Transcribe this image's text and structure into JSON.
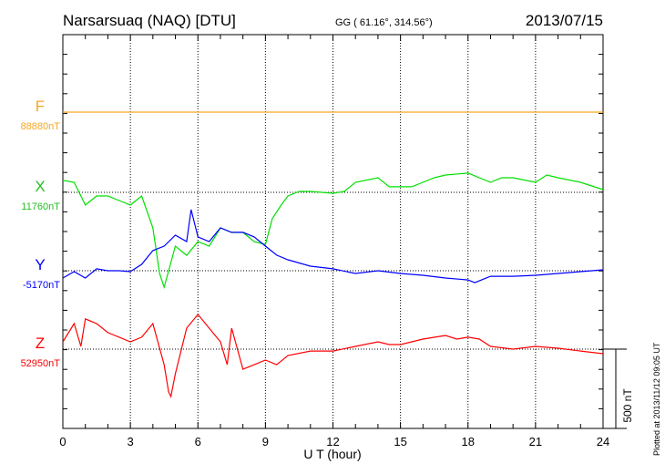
{
  "header": {
    "station": "Narsarsuaq (NAQ)  [DTU]",
    "coords": "GG ( 61.16°, 314.56°)",
    "date": "2013/07/15"
  },
  "footer_note": "Plotted at 2013/11/12 09:05 UT",
  "chart_data": {
    "type": "line",
    "xlabel": "U T (hour)",
    "xlim": [
      0,
      24
    ],
    "xticks": [
      "0",
      "3",
      "6",
      "9",
      "12",
      "15",
      "18",
      "21",
      "24"
    ],
    "scale_bar": "500 nT",
    "scale_bar_nT": 500,
    "grid": "dotted at 3-hour intervals and at each component baseline",
    "series": [
      {
        "name": "F",
        "baseline_label": "88880nT",
        "color": "#f5a623",
        "x": [
          0,
          24
        ],
        "values": [
          0,
          0
        ]
      },
      {
        "name": "X",
        "baseline_label": "11760nT",
        "color": "#00e000",
        "x": [
          0,
          0.5,
          1,
          1.5,
          2,
          2.5,
          3,
          3.5,
          4,
          4.3,
          4.5,
          5,
          5.5,
          6,
          6.5,
          7,
          7.5,
          8,
          8.5,
          9,
          9.3,
          9.7,
          10,
          10.5,
          11,
          12,
          12.5,
          13,
          14,
          14.5,
          15,
          15.5,
          16,
          16.5,
          17,
          18,
          18.5,
          19,
          19.5,
          20,
          21,
          21.5,
          22,
          23,
          24
        ],
        "values": [
          75,
          63,
          -80,
          -23,
          -23,
          -52,
          -80,
          -23,
          -224,
          -512,
          -598,
          -339,
          -397,
          -311,
          -339,
          -224,
          -253,
          -253,
          -311,
          -328,
          -167,
          -80,
          -23,
          6,
          6,
          -6,
          6,
          63,
          92,
          35,
          35,
          35,
          63,
          92,
          109,
          121,
          92,
          63,
          92,
          92,
          63,
          109,
          92,
          63,
          17
        ]
      },
      {
        "name": "Y",
        "baseline_label": "-5170nT",
        "color": "#0000ff",
        "x": [
          0,
          0.5,
          1,
          1.5,
          2,
          2.5,
          3,
          3.5,
          4,
          4.5,
          5,
          5.5,
          5.7,
          6,
          6.5,
          7,
          7.5,
          8,
          8.5,
          9,
          9.5,
          10,
          11,
          12,
          13,
          14,
          15,
          16,
          17,
          18,
          18.3,
          19,
          20,
          21,
          22,
          23,
          24
        ],
        "values": [
          -46,
          -6,
          -46,
          12,
          0,
          0,
          -6,
          40,
          127,
          155,
          224,
          184,
          385,
          213,
          184,
          270,
          242,
          242,
          213,
          155,
          98,
          69,
          29,
          12,
          -17,
          0,
          -17,
          -29,
          -46,
          -58,
          -75,
          -35,
          -35,
          -29,
          -17,
          -6,
          6
        ]
      },
      {
        "name": "Z",
        "baseline_label": "52950nT",
        "color": "#ff0000",
        "x": [
          0,
          0.5,
          0.8,
          1,
          1.5,
          2,
          2.5,
          3,
          3.5,
          4,
          4.5,
          4.7,
          4.8,
          5,
          5.5,
          6,
          6.5,
          7,
          7.3,
          7.5,
          8,
          8.5,
          9,
          9.5,
          10,
          11,
          12,
          13,
          14,
          14.5,
          15,
          16,
          17,
          17.5,
          18,
          18.5,
          19,
          20,
          21,
          22,
          23,
          24
        ],
        "values": [
          46,
          161,
          17,
          190,
          161,
          104,
          75,
          46,
          75,
          161,
          -98,
          -270,
          -299,
          -155,
          132,
          219,
          132,
          46,
          -98,
          132,
          -127,
          -98,
          -69,
          -98,
          -40,
          -12,
          -12,
          17,
          46,
          29,
          29,
          63,
          86,
          63,
          75,
          63,
          17,
          0,
          17,
          6,
          -12,
          -29
        ]
      }
    ]
  }
}
